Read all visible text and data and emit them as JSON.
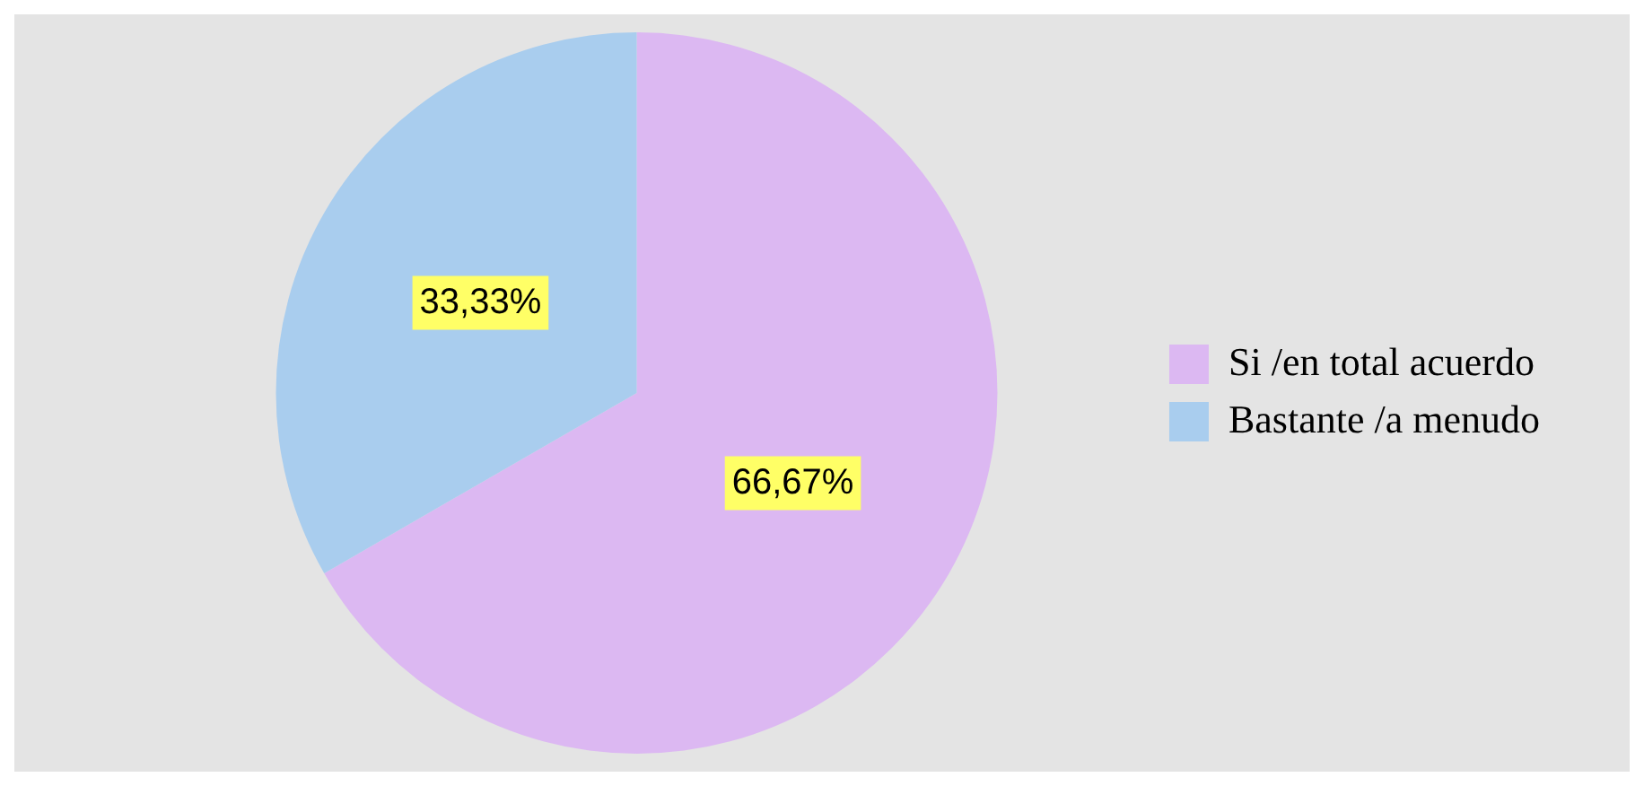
{
  "chart_data": {
    "type": "pie",
    "categories": [
      "Si /en total acuerdo",
      "Bastante /a menudo"
    ],
    "values": [
      66.67,
      33.33
    ],
    "colors": [
      "#dcb8f2",
      "#a9cdee"
    ],
    "value_labels": [
      "66,67%",
      "33,33%"
    ],
    "legend": "right"
  }
}
